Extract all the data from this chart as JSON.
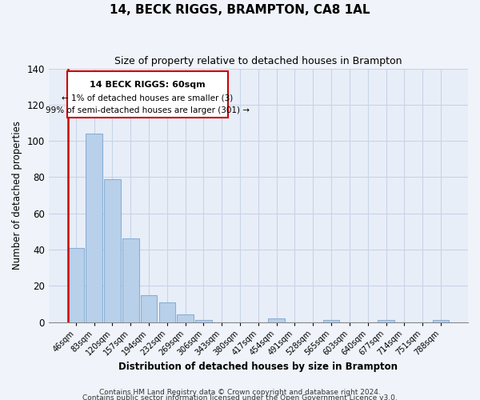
{
  "title": "14, BECK RIGGS, BRAMPTON, CA8 1AL",
  "subtitle": "Size of property relative to detached houses in Brampton",
  "xlabel": "Distribution of detached houses by size in Brampton",
  "ylabel": "Number of detached properties",
  "bar_labels": [
    "46sqm",
    "83sqm",
    "120sqm",
    "157sqm",
    "194sqm",
    "232sqm",
    "269sqm",
    "306sqm",
    "343sqm",
    "380sqm",
    "417sqm",
    "454sqm",
    "491sqm",
    "528sqm",
    "565sqm",
    "603sqm",
    "640sqm",
    "677sqm",
    "714sqm",
    "751sqm",
    "788sqm"
  ],
  "bar_values": [
    41,
    104,
    79,
    46,
    15,
    11,
    4,
    1,
    0,
    0,
    0,
    2,
    0,
    0,
    1,
    0,
    0,
    1,
    0,
    0,
    1
  ],
  "bar_color": "#b8d0ea",
  "bar_edge_color": "#8aafd4",
  "highlight_edge_color": "#cc0000",
  "ylim": [
    0,
    140
  ],
  "yticks": [
    0,
    20,
    40,
    60,
    80,
    100,
    120,
    140
  ],
  "annotation_title": "14 BECK RIGGS: 60sqm",
  "annotation_line1": "← 1% of detached houses are smaller (3)",
  "annotation_line2": "99% of semi-detached houses are larger (301) →",
  "footer1": "Contains HM Land Registry data © Crown copyright and database right 2024.",
  "footer2": "Contains public sector information licensed under the Open Government Licence v3.0.",
  "bg_color": "#f0f4fa",
  "plot_bg_color": "#e8eef8",
  "grid_color": "#c8d4e8"
}
